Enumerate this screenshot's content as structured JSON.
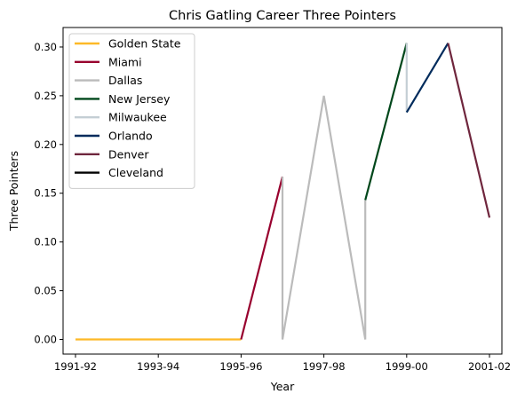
{
  "chart_data": {
    "type": "line",
    "title": "Chris Gatling Career Three Pointers",
    "xlabel": "Year",
    "ylabel": "Three Pointers",
    "x_ticks": [
      {
        "index": 0,
        "label": "1991-92"
      },
      {
        "index": 2,
        "label": "1993-94"
      },
      {
        "index": 4,
        "label": "1995-96"
      },
      {
        "index": 6,
        "label": "1997-98"
      },
      {
        "index": 8,
        "label": "1999-00"
      },
      {
        "index": 10,
        "label": "2001-02"
      }
    ],
    "y_ticks": [
      "0.00",
      "0.05",
      "0.10",
      "0.15",
      "0.20",
      "0.25",
      "0.30"
    ],
    "ylim": [
      -0.015,
      0.32
    ],
    "xlim": [
      -0.3,
      10.3
    ],
    "legend_position": "upper-left",
    "series": [
      {
        "name": "Golden State",
        "color": "#FDB927",
        "points": [
          [
            0,
            0.0
          ],
          [
            4,
            0.0
          ]
        ]
      },
      {
        "name": "Miami",
        "color": "#98002E",
        "points": [
          [
            4,
            0.0
          ],
          [
            5,
            0.167
          ]
        ]
      },
      {
        "name": "Dallas",
        "color": "#BBBBBB",
        "points": [
          [
            5,
            0.167
          ],
          [
            5,
            0.0
          ],
          [
            6,
            0.25
          ],
          [
            7,
            0.0
          ],
          [
            7,
            0.143
          ]
        ]
      },
      {
        "name": "New Jersey",
        "color": "#00471B",
        "points": [
          [
            7,
            0.143
          ],
          [
            8,
            0.304
          ]
        ]
      },
      {
        "name": "Milwaukee",
        "color": "#C4CED4",
        "points": [
          [
            8,
            0.304
          ],
          [
            8,
            0.233
          ]
        ]
      },
      {
        "name": "Orlando",
        "color": "#002B5C",
        "points": [
          [
            8,
            0.233
          ],
          [
            9,
            0.304
          ]
        ]
      },
      {
        "name": "Denver",
        "color": "#6F263D",
        "points": [
          [
            9,
            0.304
          ],
          [
            10,
            0.125
          ]
        ]
      },
      {
        "name": "Cleveland",
        "color": "#000000",
        "points": []
      }
    ]
  }
}
